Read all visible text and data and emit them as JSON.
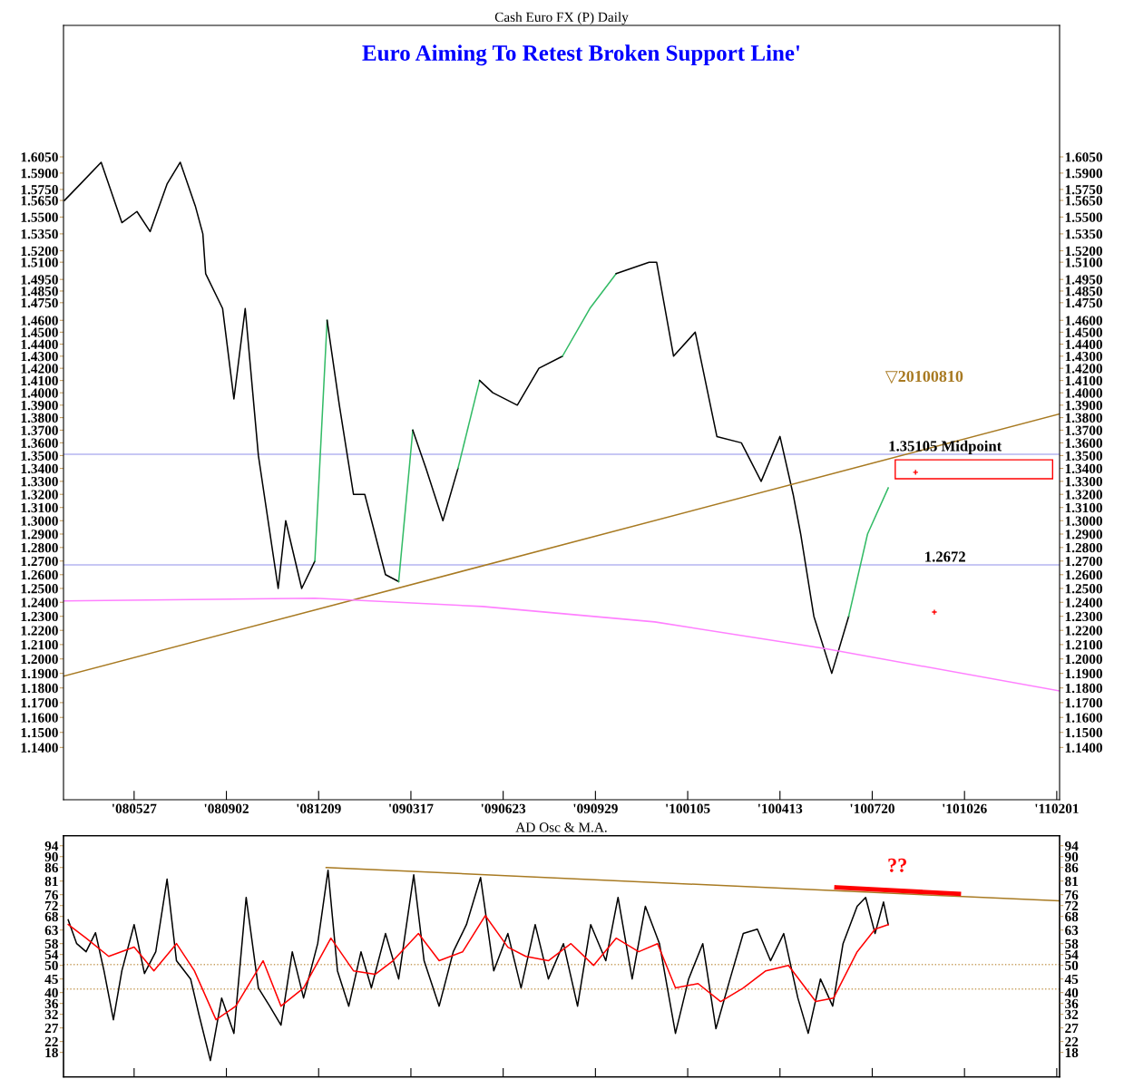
{
  "chart_data": [
    {
      "type": "line",
      "title": "Cash Euro FX (P) Daily",
      "subtitle": "Euro Aiming To Retest Broken Support Line'",
      "log": true,
      "grid": false,
      "legend": false,
      "marker": "none",
      "line_style": "solid",
      "xlim": [
        "2008-03-13",
        "2011-02-04"
      ],
      "xticks": [
        {
          "value": "2008-05-27",
          "label": "'080527"
        },
        {
          "value": "2008-09-02",
          "label": "'080902"
        },
        {
          "value": "2008-12-09",
          "label": "'081209"
        },
        {
          "value": "2009-03-17",
          "label": "'090317"
        },
        {
          "value": "2009-06-23",
          "label": "'090623"
        },
        {
          "value": "2009-09-29",
          "label": "'090929"
        },
        {
          "value": "2010-01-05",
          "label": "'100105"
        },
        {
          "value": "2010-04-13",
          "label": "'100413"
        },
        {
          "value": "2010-07-20",
          "label": "'100720"
        },
        {
          "value": "2010-10-26",
          "label": "'101026"
        },
        {
          "value": "2011-02-01",
          "label": "'110201"
        }
      ],
      "ylim": [
        1.106,
        1.732
      ],
      "yticks": [
        {
          "value": 1.605,
          "label": "1.6050"
        },
        {
          "value": 1.59,
          "label": "1.5900"
        },
        {
          "value": 1.575,
          "label": "1.5750"
        },
        {
          "value": 1.565,
          "label": "1.5650"
        },
        {
          "value": 1.55,
          "label": "1.5500"
        },
        {
          "value": 1.535,
          "label": "1.5350"
        },
        {
          "value": 1.52,
          "label": "1.5200"
        },
        {
          "value": 1.51,
          "label": "1.5100"
        },
        {
          "value": 1.495,
          "label": "1.4950"
        },
        {
          "value": 1.485,
          "label": "1.4850"
        },
        {
          "value": 1.475,
          "label": "1.4750"
        },
        {
          "value": 1.46,
          "label": "1.4600"
        },
        {
          "value": 1.45,
          "label": "1.4500"
        },
        {
          "value": 1.44,
          "label": "1.4400"
        },
        {
          "value": 1.43,
          "label": "1.4300"
        },
        {
          "value": 1.42,
          "label": "1.4200"
        },
        {
          "value": 1.41,
          "label": "1.4100"
        },
        {
          "value": 1.4,
          "label": "1.4000"
        },
        {
          "value": 1.39,
          "label": "1.3900"
        },
        {
          "value": 1.38,
          "label": "1.3800"
        },
        {
          "value": 1.37,
          "label": "1.3700"
        },
        {
          "value": 1.36,
          "label": "1.3600"
        },
        {
          "value": 1.35,
          "label": "1.3500"
        },
        {
          "value": 1.34,
          "label": "1.3400"
        },
        {
          "value": 1.33,
          "label": "1.3300"
        },
        {
          "value": 1.32,
          "label": "1.3200"
        },
        {
          "value": 1.31,
          "label": "1.3100"
        },
        {
          "value": 1.3,
          "label": "1.3000"
        },
        {
          "value": 1.29,
          "label": "1.2900"
        },
        {
          "value": 1.28,
          "label": "1.2800"
        },
        {
          "value": 1.27,
          "label": "1.2700"
        },
        {
          "value": 1.26,
          "label": "1.2600"
        },
        {
          "value": 1.25,
          "label": "1.2500"
        },
        {
          "value": 1.24,
          "label": "1.2400"
        },
        {
          "value": 1.23,
          "label": "1.2300"
        },
        {
          "value": 1.22,
          "label": "1.2200"
        },
        {
          "value": 1.21,
          "label": "1.2100"
        },
        {
          "value": 1.2,
          "label": "1.2000"
        },
        {
          "value": 1.19,
          "label": "1.1900"
        },
        {
          "value": 1.18,
          "label": "1.1800"
        },
        {
          "value": 1.17,
          "label": "1.1700"
        },
        {
          "value": 1.16,
          "label": "1.1600"
        },
        {
          "value": 1.15,
          "label": "1.1500"
        },
        {
          "value": 1.14,
          "label": "1.1400"
        }
      ],
      "series": [
        {
          "color": "#000000",
          "x": [
            "2008-03-14",
            "2008-03-31",
            "2008-04-22",
            "2008-05-14",
            "2008-05-30",
            "2008-06-13",
            "2008-07-01",
            "2008-07-15",
            "2008-07-31",
            "2008-08-08",
            "2008-08-11",
            "2008-08-29",
            "2008-09-10",
            "2008-09-22",
            "2008-10-06",
            "2008-10-27",
            "2008-11-04",
            "2008-11-21",
            "2008-12-05"
          ],
          "values": [
            1.565,
            1.58,
            1.6,
            1.545,
            1.555,
            1.537,
            1.58,
            1.6,
            1.56,
            1.535,
            1.5,
            1.47,
            1.395,
            1.47,
            1.35,
            1.25,
            1.3,
            1.25,
            1.27
          ]
        },
        {
          "color": "#33bb66",
          "x": [
            "2008-12-05",
            "2008-12-18"
          ],
          "values": [
            1.27,
            1.46
          ]
        },
        {
          "color": "#000000",
          "x": [
            "2008-12-18",
            "2008-12-31",
            "2009-01-15",
            "2009-01-27",
            "2009-02-18",
            "2009-03-04"
          ],
          "values": [
            1.46,
            1.39,
            1.32,
            1.32,
            1.26,
            1.255
          ]
        },
        {
          "color": "#33bb66",
          "x": [
            "2009-03-04",
            "2009-03-19"
          ],
          "values": [
            1.255,
            1.37
          ]
        },
        {
          "color": "#000000",
          "x": [
            "2009-03-19",
            "2009-04-02",
            "2009-04-20",
            "2009-05-06"
          ],
          "values": [
            1.37,
            1.34,
            1.3,
            1.34
          ]
        },
        {
          "color": "#33bb66",
          "x": [
            "2009-05-06",
            "2009-05-29"
          ],
          "values": [
            1.34,
            1.41
          ]
        },
        {
          "color": "#000000",
          "x": [
            "2009-05-29",
            "2009-06-12",
            "2009-07-08",
            "2009-07-31",
            "2009-08-25"
          ],
          "values": [
            1.41,
            1.4,
            1.39,
            1.42,
            1.43
          ]
        },
        {
          "color": "#33bb66",
          "x": [
            "2009-08-25",
            "2009-09-23",
            "2009-10-21"
          ],
          "values": [
            1.43,
            1.47,
            1.5
          ]
        },
        {
          "color": "#000000",
          "x": [
            "2009-10-21",
            "2009-11-25",
            "2009-12-03",
            "2009-12-21",
            "2010-01-13",
            "2010-02-05",
            "2010-03-03",
            "2010-03-24",
            "2010-04-13",
            "2010-04-27",
            "2010-05-05",
            "2010-05-19",
            "2010-06-07",
            "2010-06-25"
          ],
          "values": [
            1.5,
            1.51,
            1.51,
            1.43,
            1.45,
            1.365,
            1.36,
            1.33,
            1.365,
            1.32,
            1.29,
            1.23,
            1.19,
            1.23
          ]
        },
        {
          "color": "#33bb66",
          "x": [
            "2010-06-25",
            "2010-07-15",
            "2010-08-06"
          ],
          "values": [
            1.23,
            1.29,
            1.325
          ]
        },
        {
          "color": "#a87a22",
          "x": [
            "2008-03-13",
            "2011-02-04"
          ],
          "values": [
            1.188,
            1.383
          ]
        },
        {
          "color": "#ff80ff",
          "x": [
            "2008-03-13",
            "2008-12-05",
            "2009-06-01",
            "2009-12-01",
            "2010-06-01",
            "2011-02-04"
          ],
          "values": [
            1.241,
            1.243,
            1.237,
            1.226,
            1.207,
            1.178
          ]
        },
        {
          "type": "scatter",
          "marker": "cross",
          "color": "#ff0000",
          "x": [
            "2010-09-04",
            "2010-09-24"
          ],
          "values": [
            1.337,
            1.233
          ]
        }
      ],
      "ref_lines": [
        {
          "axis": "y",
          "value": 1.35105,
          "label": "1.35105 Midpoint",
          "color": "#b4b4f0"
        },
        {
          "axis": "y",
          "value": 1.2672,
          "label": "1.2672",
          "color": "#b4b4f0"
        }
      ],
      "annotations": [
        "▽20100810"
      ]
    },
    {
      "type": "line",
      "title": "AD Osc & M.A.",
      "grid": false,
      "legend": false,
      "marker": "none",
      "line_style": "solid",
      "tick_labels": "y",
      "xlim": [
        "2008-03-13",
        "2011-02-04"
      ],
      "xticks": [
        {
          "value": "2008-05-27",
          "label": null
        },
        {
          "value": "2008-09-02",
          "label": null
        },
        {
          "value": "2008-12-09",
          "label": null
        },
        {
          "value": "2009-03-17",
          "label": null
        },
        {
          "value": "2009-06-23",
          "label": null
        },
        {
          "value": "2009-09-29",
          "label": null
        },
        {
          "value": "2010-01-05",
          "label": null
        },
        {
          "value": "2010-04-13",
          "label": null
        },
        {
          "value": "2010-07-20",
          "label": null
        },
        {
          "value": "2010-10-26",
          "label": null
        },
        {
          "value": "2011-02-01",
          "label": null
        }
      ],
      "ylim": [
        9,
        97.7
      ],
      "yticks": [
        94,
        90,
        86,
        81,
        76,
        72,
        68,
        63,
        58,
        54,
        50,
        45,
        40,
        36,
        32,
        27,
        22,
        18
      ],
      "y2lim": [
        9,
        97.7
      ],
      "y2ticks": [
        94,
        90,
        86,
        81,
        76,
        72,
        68,
        63,
        58,
        54,
        50,
        45,
        40,
        36,
        32,
        27,
        22,
        18
      ],
      "series": [
        {
          "color": "#000000",
          "x": [
            "2008-03-18",
            "2008-03-27",
            "2008-04-06",
            "2008-04-16",
            "2008-04-25",
            "2008-05-05",
            "2008-05-14",
            "2008-05-27",
            "2008-06-07",
            "2008-06-19",
            "2008-07-01",
            "2008-07-11",
            "2008-07-26",
            "2008-08-04",
            "2008-08-16",
            "2008-08-28",
            "2008-09-10",
            "2008-09-23",
            "2008-10-06",
            "2008-10-18",
            "2008-10-30",
            "2008-11-11",
            "2008-11-23",
            "2008-12-08",
            "2008-12-19",
            "2008-12-29",
            "2009-01-10",
            "2009-01-23",
            "2009-02-03",
            "2009-02-18",
            "2009-03-04",
            "2009-03-20",
            "2009-03-31",
            "2009-04-16",
            "2009-05-01",
            "2009-05-15",
            "2009-05-30",
            "2009-06-13",
            "2009-06-28",
            "2009-07-12",
            "2009-07-27",
            "2009-08-10",
            "2009-08-26",
            "2009-09-10",
            "2009-09-24",
            "2009-10-10",
            "2009-10-23",
            "2009-11-07",
            "2009-11-21",
            "2009-12-06",
            "2009-12-23",
            "2010-01-06",
            "2010-01-21",
            "2010-02-04",
            "2010-02-19",
            "2010-03-05",
            "2010-03-20",
            "2010-04-03",
            "2010-04-17",
            "2010-05-02",
            "2010-05-13",
            "2010-05-26",
            "2010-06-08",
            "2010-06-19",
            "2010-07-04",
            "2010-07-13",
            "2010-07-23",
            "2010-08-01",
            "2010-08-06"
          ],
          "values": [
            66.7,
            58,
            55,
            62,
            48,
            30,
            48,
            65,
            47,
            55,
            81.7,
            51.7,
            45,
            31.7,
            15,
            38,
            25,
            75,
            41.7,
            35,
            28,
            55,
            38,
            58,
            85,
            48,
            35,
            55,
            41.7,
            61.7,
            45,
            83.3,
            51.7,
            35,
            55,
            65,
            82.3,
            48,
            61.7,
            41.7,
            65,
            45,
            58,
            35,
            65,
            51.7,
            75,
            45,
            71.7,
            58,
            25,
            45,
            58,
            26.7,
            45,
            61.7,
            63.3,
            51.7,
            61.7,
            38,
            25,
            45,
            35,
            58,
            71.7,
            75,
            61.7,
            73.3,
            65
          ]
        },
        {
          "color": "#ff0000",
          "x": [
            "2008-03-18",
            "2008-04-06",
            "2008-04-30",
            "2008-05-27",
            "2008-06-17",
            "2008-07-11",
            "2008-07-30",
            "2008-08-22",
            "2008-09-12",
            "2008-10-11",
            "2008-10-30",
            "2008-11-23",
            "2008-12-22",
            "2009-01-15",
            "2009-02-07",
            "2009-02-26",
            "2009-03-25",
            "2009-04-16",
            "2009-05-11",
            "2009-06-04",
            "2009-06-28",
            "2009-07-17",
            "2009-08-10",
            "2009-09-03",
            "2009-09-27",
            "2009-10-21",
            "2009-11-14",
            "2009-12-04",
            "2009-12-23",
            "2010-01-16",
            "2010-02-09",
            "2010-03-05",
            "2010-03-29",
            "2010-04-22",
            "2010-05-21",
            "2010-06-09",
            "2010-07-04",
            "2010-07-23",
            "2010-08-06"
          ],
          "values": [
            65,
            60,
            53.3,
            56.7,
            48,
            58,
            48,
            30,
            35,
            51.7,
            35,
            41.7,
            60,
            48,
            46.7,
            51.7,
            61.7,
            51.7,
            55,
            68.3,
            56.7,
            53.3,
            51.7,
            58,
            50,
            60,
            55,
            58,
            41.7,
            43.3,
            36.7,
            41.7,
            48,
            50,
            36.7,
            38,
            55,
            63.3,
            65
          ]
        },
        {
          "color": "#a87a22",
          "x": [
            "2008-12-17",
            "2011-02-04"
          ],
          "values": [
            86,
            73.7
          ]
        },
        {
          "color": "#ff0000",
          "x": [
            "2010-06-12",
            "2010-10-20"
          ],
          "values": [
            78.7,
            76.3
          ]
        }
      ],
      "ref_lines": [
        {
          "axis": "y",
          "value": 50.3,
          "color": "#c8a060",
          "line_style": "dotted"
        },
        {
          "axis": "y",
          "value": 41.3,
          "color": "#c8a060",
          "line_style": "dotted"
        }
      ],
      "annotations": [
        "??"
      ]
    }
  ]
}
